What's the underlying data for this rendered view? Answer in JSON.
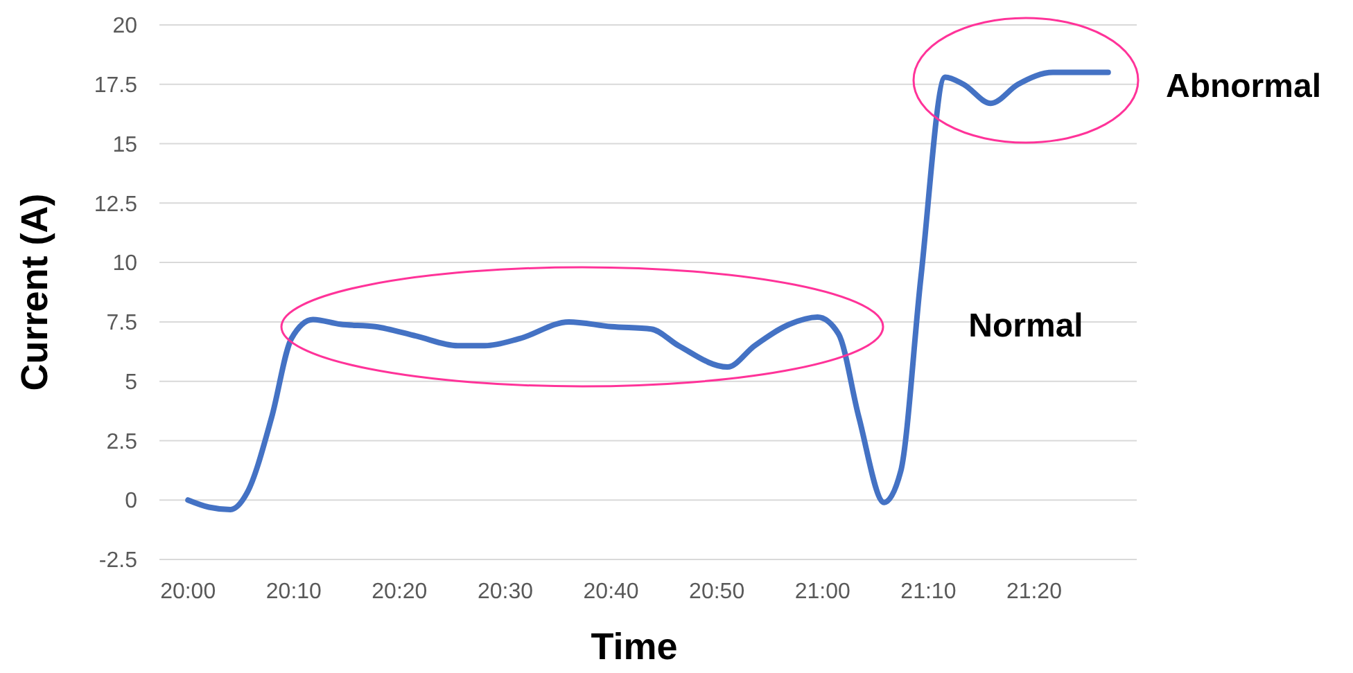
{
  "chart_data": {
    "type": "line",
    "xlabel": "Time",
    "ylabel": "Current (A)",
    "x": [
      20.0,
      20.033,
      20.067,
      20.093,
      20.132,
      20.163,
      20.197,
      20.24,
      20.295,
      20.36,
      20.425,
      20.468,
      20.523,
      20.6,
      20.667,
      20.73,
      20.773,
      20.85,
      20.893,
      20.948,
      20.992,
      21.025,
      21.057,
      21.097,
      21.123,
      21.155,
      21.193,
      21.222,
      21.265,
      21.308,
      21.363,
      21.45
    ],
    "series": [
      {
        "color": "#4472c4",
        "values": [
          0,
          -0.3,
          -0.4,
          0.3,
          3.5,
          6.8,
          7.6,
          7.4,
          7.3,
          6.9,
          6.5,
          6.5,
          6.8,
          7.5,
          7.3,
          7.2,
          6.5,
          5.6,
          6.5,
          7.4,
          7.7,
          7.0,
          3.5,
          -0.1,
          1.2,
          9.4,
          17.8,
          17.5,
          16.7,
          17.5,
          18.0,
          18.0
        ]
      }
    ],
    "xlim": [
      19.955,
      21.495
    ],
    "xticks": [
      {
        "value": 20,
        "label": "20:00"
      },
      {
        "value": 20.1667,
        "label": "20:10"
      },
      {
        "value": 20.3333,
        "label": "20:20"
      },
      {
        "value": 20.5,
        "label": "20:30"
      },
      {
        "value": 20.6667,
        "label": "20:40"
      },
      {
        "value": 20.8333,
        "label": "20:50"
      },
      {
        "value": 21,
        "label": "21:00"
      },
      {
        "value": 21.1667,
        "label": "21:10"
      },
      {
        "value": 21.3333,
        "label": "21:20"
      }
    ],
    "ylim": [
      -2.5,
      20
    ],
    "yticks": [
      -2.5,
      0,
      2.5,
      5,
      7.5,
      10,
      12.5,
      15,
      17.5,
      20
    ],
    "grid": "y",
    "line_style": "solid",
    "marker": "none",
    "annotations": [
      "Normal",
      "Abnormal"
    ]
  }
}
